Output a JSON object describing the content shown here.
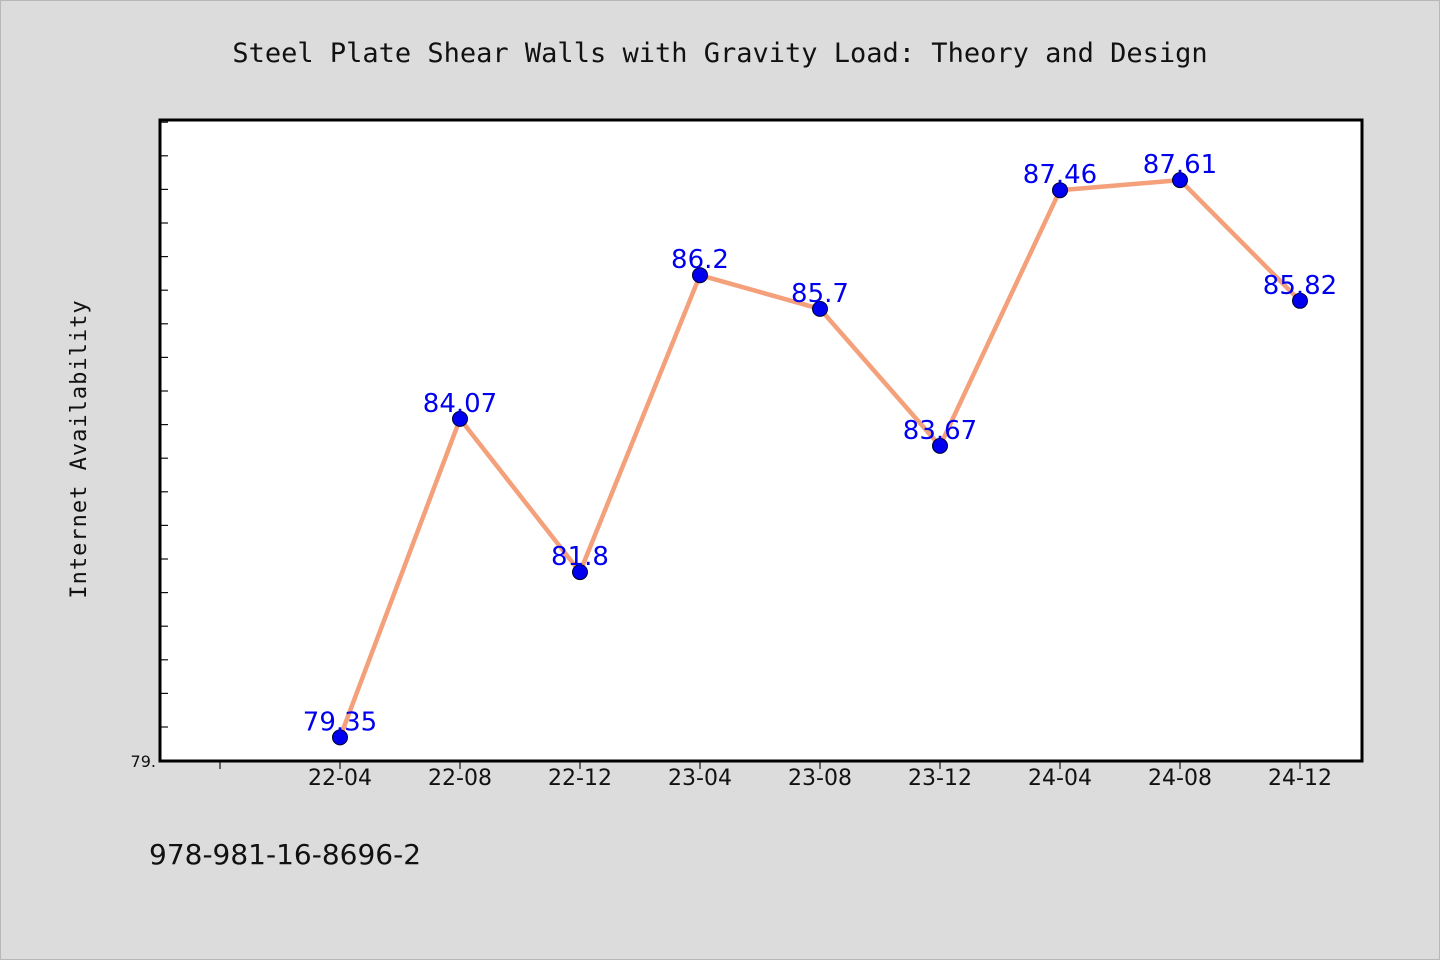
{
  "chart_data": {
    "type": "line",
    "title": "Steel Plate Shear Walls with Gravity Load: Theory and Design",
    "xlabel": "",
    "ylabel": "Internet Availability",
    "categories": [
      "22-04",
      "22-08",
      "22-12",
      "23-04",
      "23-08",
      "23-12",
      "24-04",
      "24-08",
      "24-12"
    ],
    "series": [
      {
        "values": [
          79.35,
          84.07,
          81.8,
          86.2,
          85.7,
          83.67,
          87.46,
          87.61,
          85.82
        ],
        "labels": [
          "79.35",
          "84.07",
          "81.8",
          "86.2",
          "85.7",
          "83.67",
          "87.46",
          "87.61",
          "85.82"
        ]
      }
    ],
    "ylim": [
      79.0,
      88.5
    ],
    "ytick_labels": [
      "79."
    ],
    "grid": false,
    "legend": "none",
    "colors": {
      "line": "#f4a07a",
      "marker": "#0000ee",
      "data_label": "#0000ee",
      "plot_background": "#ffffff",
      "figure_background": "#dcdcdc"
    }
  },
  "footer": {
    "isbn": "978-981-16-8696-2"
  }
}
